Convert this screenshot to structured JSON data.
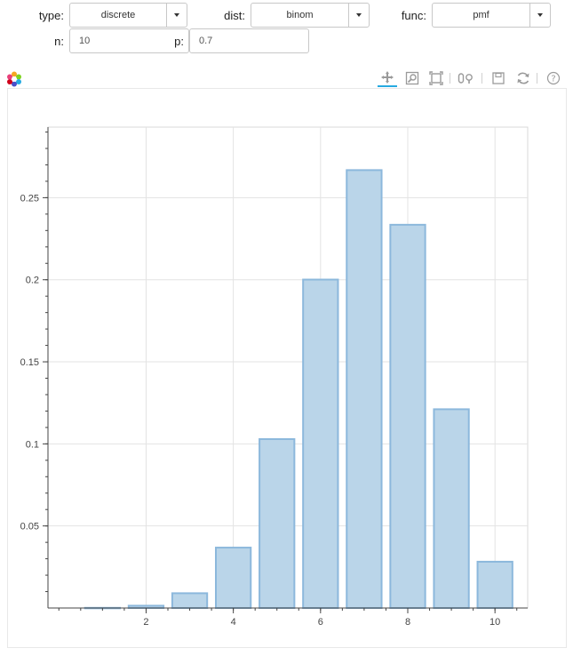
{
  "controls": {
    "type_label": "type:",
    "type_value": "discrete",
    "dist_label": "dist:",
    "dist_value": "binom",
    "func_label": "func:",
    "func_value": "pmf",
    "n_label": "n:",
    "n_value": "10",
    "p_label": "p:",
    "p_value": "0.7"
  },
  "toolbar": {
    "icons": [
      "pan-icon",
      "wheel-zoom-icon",
      "box-zoom-icon",
      "box-select-icon",
      "save-icon",
      "reset-icon",
      "help-icon"
    ],
    "active": "pan-icon"
  },
  "colors": {
    "bar_fill": "#bad5e9",
    "bar_stroke": "#8cb8dc",
    "grid": "#e3e3e3",
    "axis": "#444444"
  },
  "chart_data": {
    "type": "bar",
    "categories": [
      "1",
      "2",
      "3",
      "4",
      "5",
      "6",
      "7",
      "8",
      "9",
      "10"
    ],
    "x": [
      1,
      2,
      3,
      4,
      5,
      6,
      7,
      8,
      9,
      10
    ],
    "values": [
      0.0001,
      0.0014,
      0.009,
      0.0368,
      0.1029,
      0.2001,
      0.2668,
      0.2335,
      0.1211,
      0.0282
    ],
    "xticks": [
      "2",
      "4",
      "6",
      "8",
      "10"
    ],
    "yticks": [
      "0.05",
      "0.1",
      "0.15",
      "0.2",
      "0.25"
    ],
    "xlim": [
      -0.25,
      10.75
    ],
    "ylim": [
      0,
      0.293
    ],
    "grid": true,
    "title": "",
    "xlabel": "",
    "ylabel": ""
  }
}
